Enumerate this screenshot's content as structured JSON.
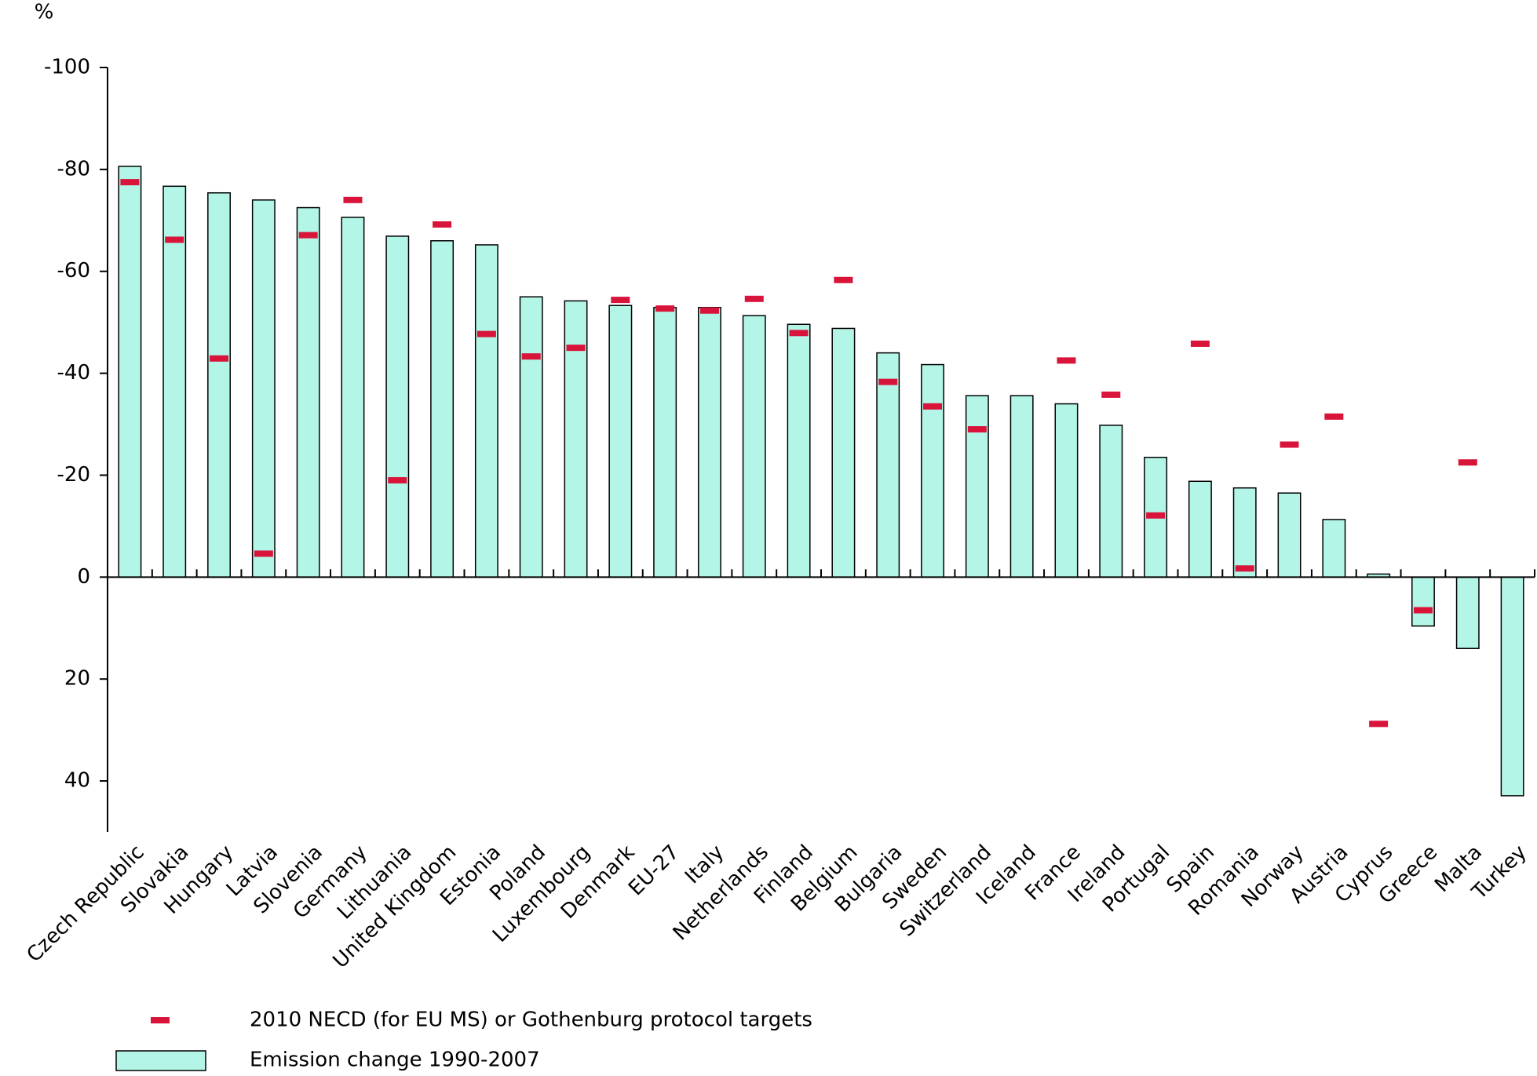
{
  "chart_data": {
    "type": "bar",
    "y_label": "%",
    "categories": [
      "Czech Republic",
      "Slovakia",
      "Hungary",
      "Latvia",
      "Slovenia",
      "Germany",
      "Lithuania",
      "United Kingdom",
      "Estonia",
      "Poland",
      "Luxembourg",
      "Denmark",
      "EU-27",
      "Italy",
      "Netherlands",
      "Finland",
      "Belgium",
      "Bulgaria",
      "Sweden",
      "Switzerland",
      "Iceland",
      "France",
      "Ireland",
      "Portugal",
      "Spain",
      "Romania",
      "Norway",
      "Austria",
      "Cyprus",
      "Greece",
      "Malta",
      "Turkey"
    ],
    "series": [
      {
        "name": "2010 NECD (for EU MS) or Gothenburg protocol targets",
        "mark": "dash",
        "color": "#d9143a",
        "values": [
          -77.5,
          -66.2,
          -42.9,
          -4.6,
          -67.1,
          -74.0,
          -19.0,
          -69.2,
          -47.7,
          -43.3,
          -45.0,
          -54.4,
          -52.7,
          -52.3,
          -54.6,
          -47.9,
          -58.3,
          -38.3,
          -33.5,
          -29.0,
          null,
          -42.5,
          -35.8,
          -12.1,
          -45.8,
          -1.7,
          -26.0,
          -31.5,
          28.8,
          6.5,
          -22.5,
          null
        ]
      },
      {
        "name": "Emission change 1990-2007",
        "mark": "bar",
        "color": "#b3f5e6",
        "values": [
          -80.6,
          -76.7,
          -75.4,
          -74.0,
          -72.5,
          -70.6,
          -66.9,
          -66.0,
          -65.2,
          -55.0,
          -54.2,
          -53.3,
          -52.9,
          -52.9,
          -51.3,
          -49.6,
          -48.8,
          -44.0,
          -41.7,
          -35.6,
          -35.6,
          -34.0,
          -29.8,
          -23.5,
          -18.8,
          -17.5,
          -16.5,
          -11.3,
          -0.6,
          9.6,
          14.0,
          42.9
        ]
      }
    ],
    "ylim": [
      -100,
      50
    ],
    "y_reversed": true,
    "yticks": [
      -100,
      -80,
      -60,
      -40,
      -20,
      0,
      20,
      40
    ]
  }
}
